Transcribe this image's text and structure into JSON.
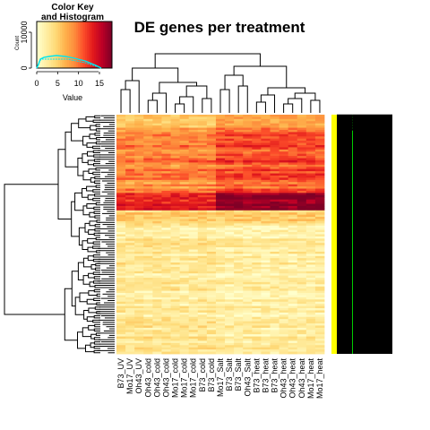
{
  "chart_data": {
    "type": "heatmap",
    "title": "DE genes per treatment",
    "columns": [
      "B73_UV",
      "Mo17_UV",
      "Oh43_UV",
      "Oh43_cold",
      "Oh43_cold",
      "Oh43_cold",
      "Mo17_cold",
      "Mo17_cold",
      "Mo17_cold",
      "B73_cold",
      "B73_cold",
      "Mo17_Salt",
      "B73_Salt",
      "B73_Salt",
      "Oh43_Salt",
      "B73_heat",
      "B73_heat",
      "B73_heat",
      "Oh43_heat",
      "Oh43_heat",
      "Oh43_heat",
      "Mo17_heat",
      "Mo17_heat"
    ],
    "color_key": {
      "title_line1": "Color Key",
      "title_line2": "and Histogram",
      "xlabel": "Value",
      "ylabel": "Count",
      "x_ticks": [
        "0",
        "5",
        "10",
        "15"
      ],
      "y_ticks": [
        "0",
        "10000"
      ],
      "x_range": [
        0,
        18
      ],
      "palette": [
        "#FFFFCC",
        "#FFEDA0",
        "#FED976",
        "#FEB24C",
        "#FD8D3C",
        "#FC4E2A",
        "#E31A1C",
        "#BD0026",
        "#800026"
      ]
    },
    "row_dendrogram": true,
    "column_dendrogram": true,
    "side_colors": [
      "#FFFF00",
      "#00FF00"
    ]
  }
}
